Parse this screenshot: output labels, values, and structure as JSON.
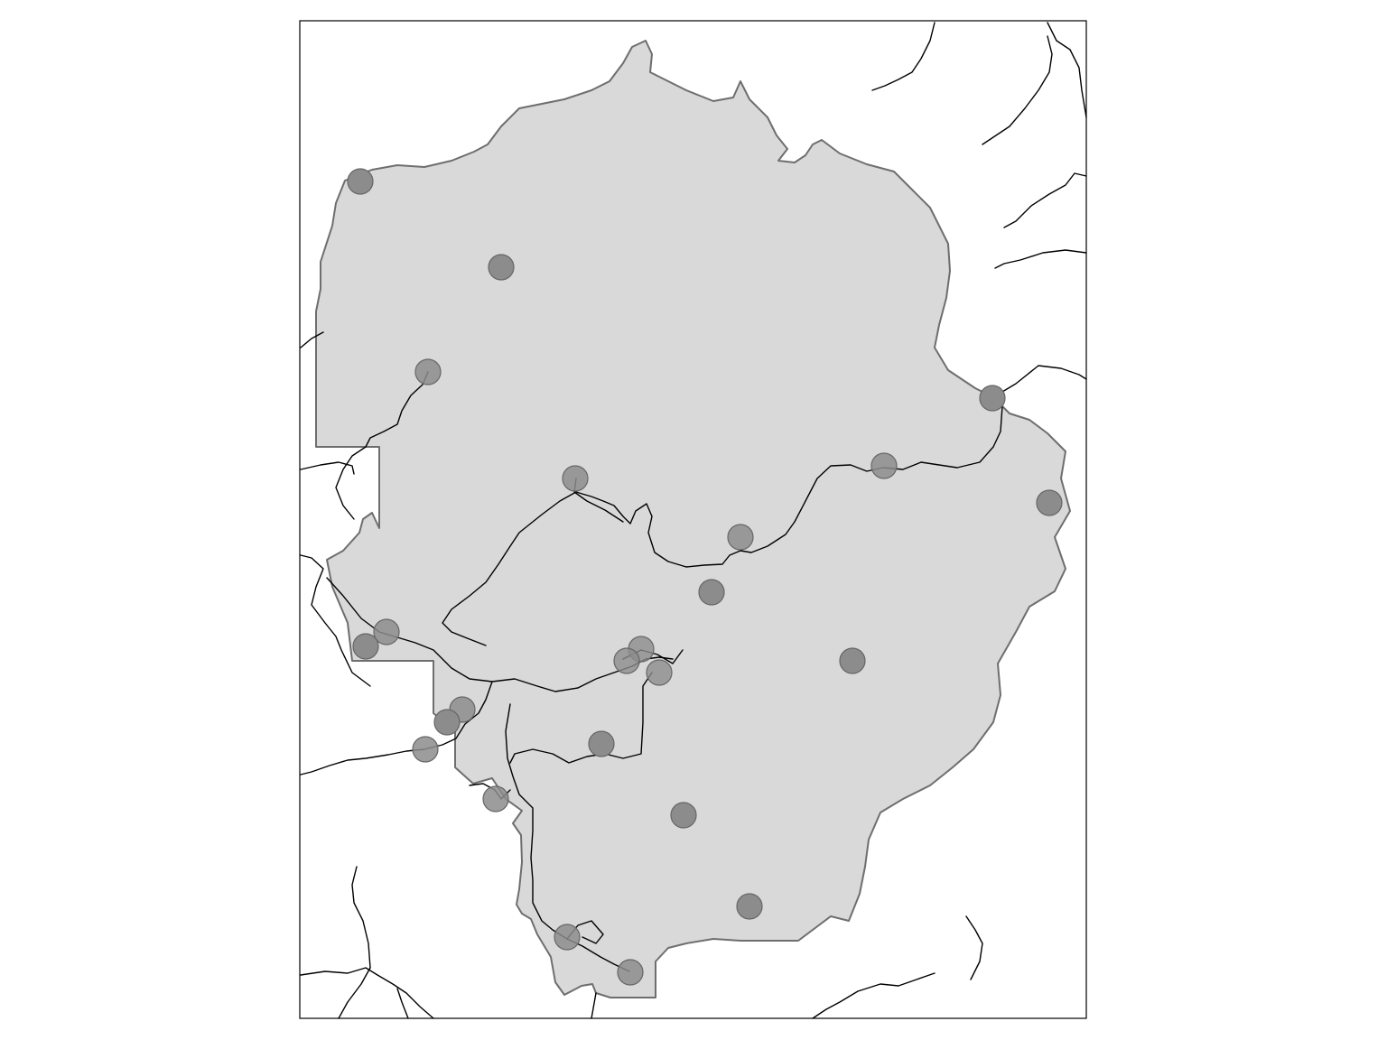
{
  "map": {
    "colors": {
      "background": "#ffffff",
      "park_fill": "#d9d9d9",
      "park_outline": "#6e6e6e",
      "road_line": "#000000",
      "marker_fill": "#8c8c8c",
      "marker_outline": "#666666",
      "frame": "#000000"
    },
    "layers": [
      "park-boundary",
      "road-network",
      "river-network",
      "point-markers"
    ],
    "marker_count": 26,
    "marker_style": "semi-transparent-circle"
  }
}
